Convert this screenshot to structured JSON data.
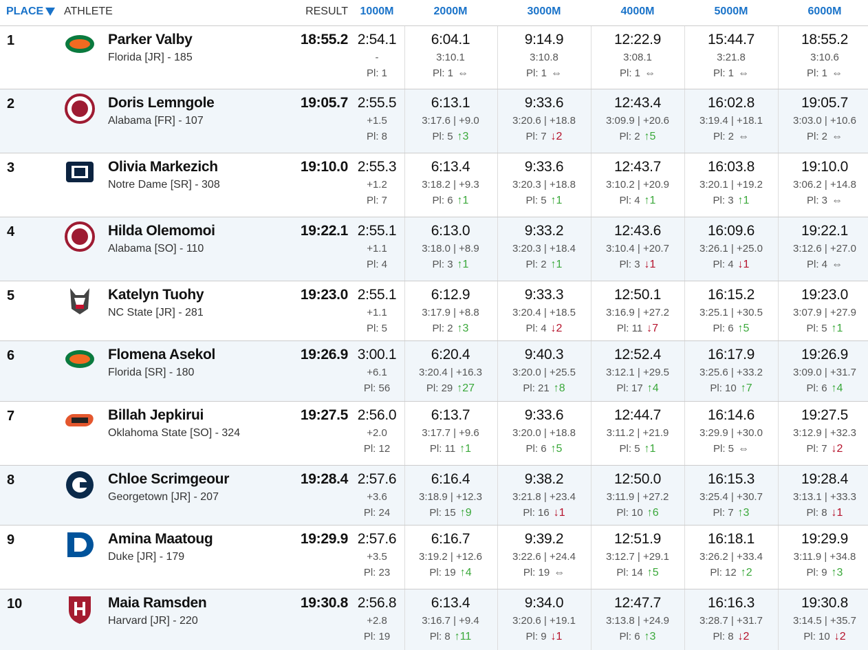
{
  "table": {
    "headers": [
      "PLACE",
      "ATHLETE",
      "RESULT",
      "1000M",
      "2000M",
      "3000M",
      "4000M",
      "5000M",
      "6000M"
    ],
    "rows": [
      {
        "place": 1,
        "name": "Parker Valby",
        "team": "Florida [JR] - 185",
        "result": "18:55.2",
        "splits": [
          [
            "2:54.1",
            "-",
            "Pl: 1"
          ],
          [
            "6:04.1",
            "3:10.1",
            "Pl: 1",
            "⇔"
          ],
          [
            "9:14.9",
            "3:10.8",
            "Pl: 1",
            "⇔"
          ],
          [
            "12:22.9",
            "3:08.1",
            "Pl: 1",
            "⇔"
          ],
          [
            "15:44.7",
            "3:21.8",
            "Pl: 1",
            "⇔"
          ],
          [
            "18:55.2",
            "3:10.6",
            "Pl: 1",
            "⇔"
          ]
        ]
      },
      {
        "place": 2,
        "name": "Doris Lemngole",
        "team": "Alabama [FR] - 107",
        "result": "19:05.7",
        "splits": [
          [
            "2:55.5",
            "+1.5",
            "Pl: 8"
          ],
          [
            "6:13.1",
            "3:17.6 | +9.0",
            "Pl: 5",
            "↑3"
          ],
          [
            "9:33.6",
            "3:20.6 | +18.8",
            "Pl: 7",
            "↓2"
          ],
          [
            "12:43.4",
            "3:09.9 | +20.6",
            "Pl: 2",
            "↑5"
          ],
          [
            "16:02.8",
            "3:19.4 | +18.1",
            "Pl: 2",
            "⇔"
          ],
          [
            "19:05.7",
            "3:03.0 | +10.6",
            "Pl: 2",
            "⇔"
          ]
        ]
      },
      {
        "place": 3,
        "name": "Olivia Markezich",
        "team": "Notre Dame [SR] - 308",
        "result": "19:10.0",
        "splits": [
          [
            "2:55.3",
            "+1.2",
            "Pl: 7"
          ],
          [
            "6:13.4",
            "3:18.2 | +9.3",
            "Pl: 6",
            "↑1"
          ],
          [
            "9:33.6",
            "3:20.3 | +18.8",
            "Pl: 5",
            "↑1"
          ],
          [
            "12:43.7",
            "3:10.2 | +20.9",
            "Pl: 4",
            "↑1"
          ],
          [
            "16:03.8",
            "3:20.1 | +19.2",
            "Pl: 3",
            "↑1"
          ],
          [
            "19:10.0",
            "3:06.2 | +14.8",
            "Pl: 3",
            "⇔"
          ]
        ]
      },
      {
        "place": 4,
        "name": "Hilda Olemomoi",
        "team": "Alabama [SO] - 110",
        "result": "19:22.1",
        "splits": [
          [
            "2:55.1",
            "+1.1",
            "Pl: 4"
          ],
          [
            "6:13.0",
            "3:18.0 | +8.9",
            "Pl: 3",
            "↑1"
          ],
          [
            "9:33.2",
            "3:20.3 | +18.4",
            "Pl: 2",
            "↑1"
          ],
          [
            "12:43.6",
            "3:10.4 | +20.7",
            "Pl: 3",
            "↓1"
          ],
          [
            "16:09.6",
            "3:26.1 | +25.0",
            "Pl: 4",
            "↓1"
          ],
          [
            "19:22.1",
            "3:12.6 | +27.0",
            "Pl: 4",
            "⇔"
          ]
        ]
      },
      {
        "place": 5,
        "name": "Katelyn Tuohy",
        "team": "NC State [JR] - 281",
        "result": "19:23.0",
        "splits": [
          [
            "2:55.1",
            "+1.1",
            "Pl: 5"
          ],
          [
            "6:12.9",
            "3:17.9 | +8.8",
            "Pl: 2",
            "↑3"
          ],
          [
            "9:33.3",
            "3:20.4 | +18.5",
            "Pl: 4",
            "↓2"
          ],
          [
            "12:50.1",
            "3:16.9 | +27.2",
            "Pl: 11",
            "↓7"
          ],
          [
            "16:15.2",
            "3:25.1 | +30.5",
            "Pl: 6",
            "↑5"
          ],
          [
            "19:23.0",
            "3:07.9 | +27.9",
            "Pl: 5",
            "↑1"
          ]
        ]
      },
      {
        "place": 6,
        "name": "Flomena Asekol",
        "team": "Florida [SR] - 180",
        "result": "19:26.9",
        "splits": [
          [
            "3:00.1",
            "+6.1",
            "Pl: 56"
          ],
          [
            "6:20.4",
            "3:20.4 | +16.3",
            "Pl: 29",
            "↑27"
          ],
          [
            "9:40.3",
            "3:20.0 | +25.5",
            "Pl: 21",
            "↑8"
          ],
          [
            "12:52.4",
            "3:12.1 | +29.5",
            "Pl: 17",
            "↑4"
          ],
          [
            "16:17.9",
            "3:25.6 | +33.2",
            "Pl: 10",
            "↑7"
          ],
          [
            "19:26.9",
            "3:09.0 | +31.7",
            "Pl: 6",
            "↑4"
          ]
        ]
      },
      {
        "place": 7,
        "name": "Billah Jepkirui",
        "team": "Oklahoma State [SO] - 324",
        "result": "19:27.5",
        "splits": [
          [
            "2:56.0",
            "+2.0",
            "Pl: 12"
          ],
          [
            "6:13.7",
            "3:17.7 | +9.6",
            "Pl: 11",
            "↑1"
          ],
          [
            "9:33.6",
            "3:20.0 | +18.8",
            "Pl: 6",
            "↑5"
          ],
          [
            "12:44.7",
            "3:11.2 | +21.9",
            "Pl: 5",
            "↑1"
          ],
          [
            "16:14.6",
            "3:29.9 | +30.0",
            "Pl: 5",
            "⇔"
          ],
          [
            "19:27.5",
            "3:12.9 | +32.3",
            "Pl: 7",
            "↓2"
          ]
        ]
      },
      {
        "place": 8,
        "name": "Chloe Scrimgeour",
        "team": "Georgetown [JR] - 207",
        "result": "19:28.4",
        "splits": [
          [
            "2:57.6",
            "+3.6",
            "Pl: 24"
          ],
          [
            "6:16.4",
            "3:18.9 | +12.3",
            "Pl: 15",
            "↑9"
          ],
          [
            "9:38.2",
            "3:21.8 | +23.4",
            "Pl: 16",
            "↓1"
          ],
          [
            "12:50.0",
            "3:11.9 | +27.2",
            "Pl: 10",
            "↑6"
          ],
          [
            "16:15.3",
            "3:25.4 | +30.7",
            "Pl: 7",
            "↑3"
          ],
          [
            "19:28.4",
            "3:13.1 | +33.3",
            "Pl: 8",
            "↓1"
          ]
        ]
      },
      {
        "place": 9,
        "name": "Amina Maatoug",
        "team": "Duke [JR] - 179",
        "result": "19:29.9",
        "splits": [
          [
            "2:57.6",
            "+3.5",
            "Pl: 23"
          ],
          [
            "6:16.7",
            "3:19.2 | +12.6",
            "Pl: 19",
            "↑4"
          ],
          [
            "9:39.2",
            "3:22.6 | +24.4",
            "Pl: 19",
            "⇔"
          ],
          [
            "12:51.9",
            "3:12.7 | +29.1",
            "Pl: 14",
            "↑5"
          ],
          [
            "16:18.1",
            "3:26.2 | +33.4",
            "Pl: 12",
            "↑2"
          ],
          [
            "19:29.9",
            "3:11.9 | +34.8",
            "Pl: 9",
            "↑3"
          ]
        ]
      },
      {
        "place": 10,
        "name": "Maia Ramsden",
        "team": "Harvard [JR] - 220",
        "result": "19:30.8",
        "splits": [
          [
            "2:56.8",
            "+2.8",
            "Pl: 19"
          ],
          [
            "6:13.4",
            "3:16.7 | +9.4",
            "Pl: 8",
            "↑11"
          ],
          [
            "9:34.0",
            "3:20.6 | +19.1",
            "Pl: 9",
            "↓1"
          ],
          [
            "12:47.7",
            "3:13.8 | +24.9",
            "Pl: 6",
            "↑3"
          ],
          [
            "16:16.3",
            "3:28.7 | +31.7",
            "Pl: 8",
            "↓2"
          ],
          [
            "19:30.8",
            "3:14.5 | +35.7",
            "Pl: 10",
            "↓2"
          ]
        ]
      }
    ]
  }
}
